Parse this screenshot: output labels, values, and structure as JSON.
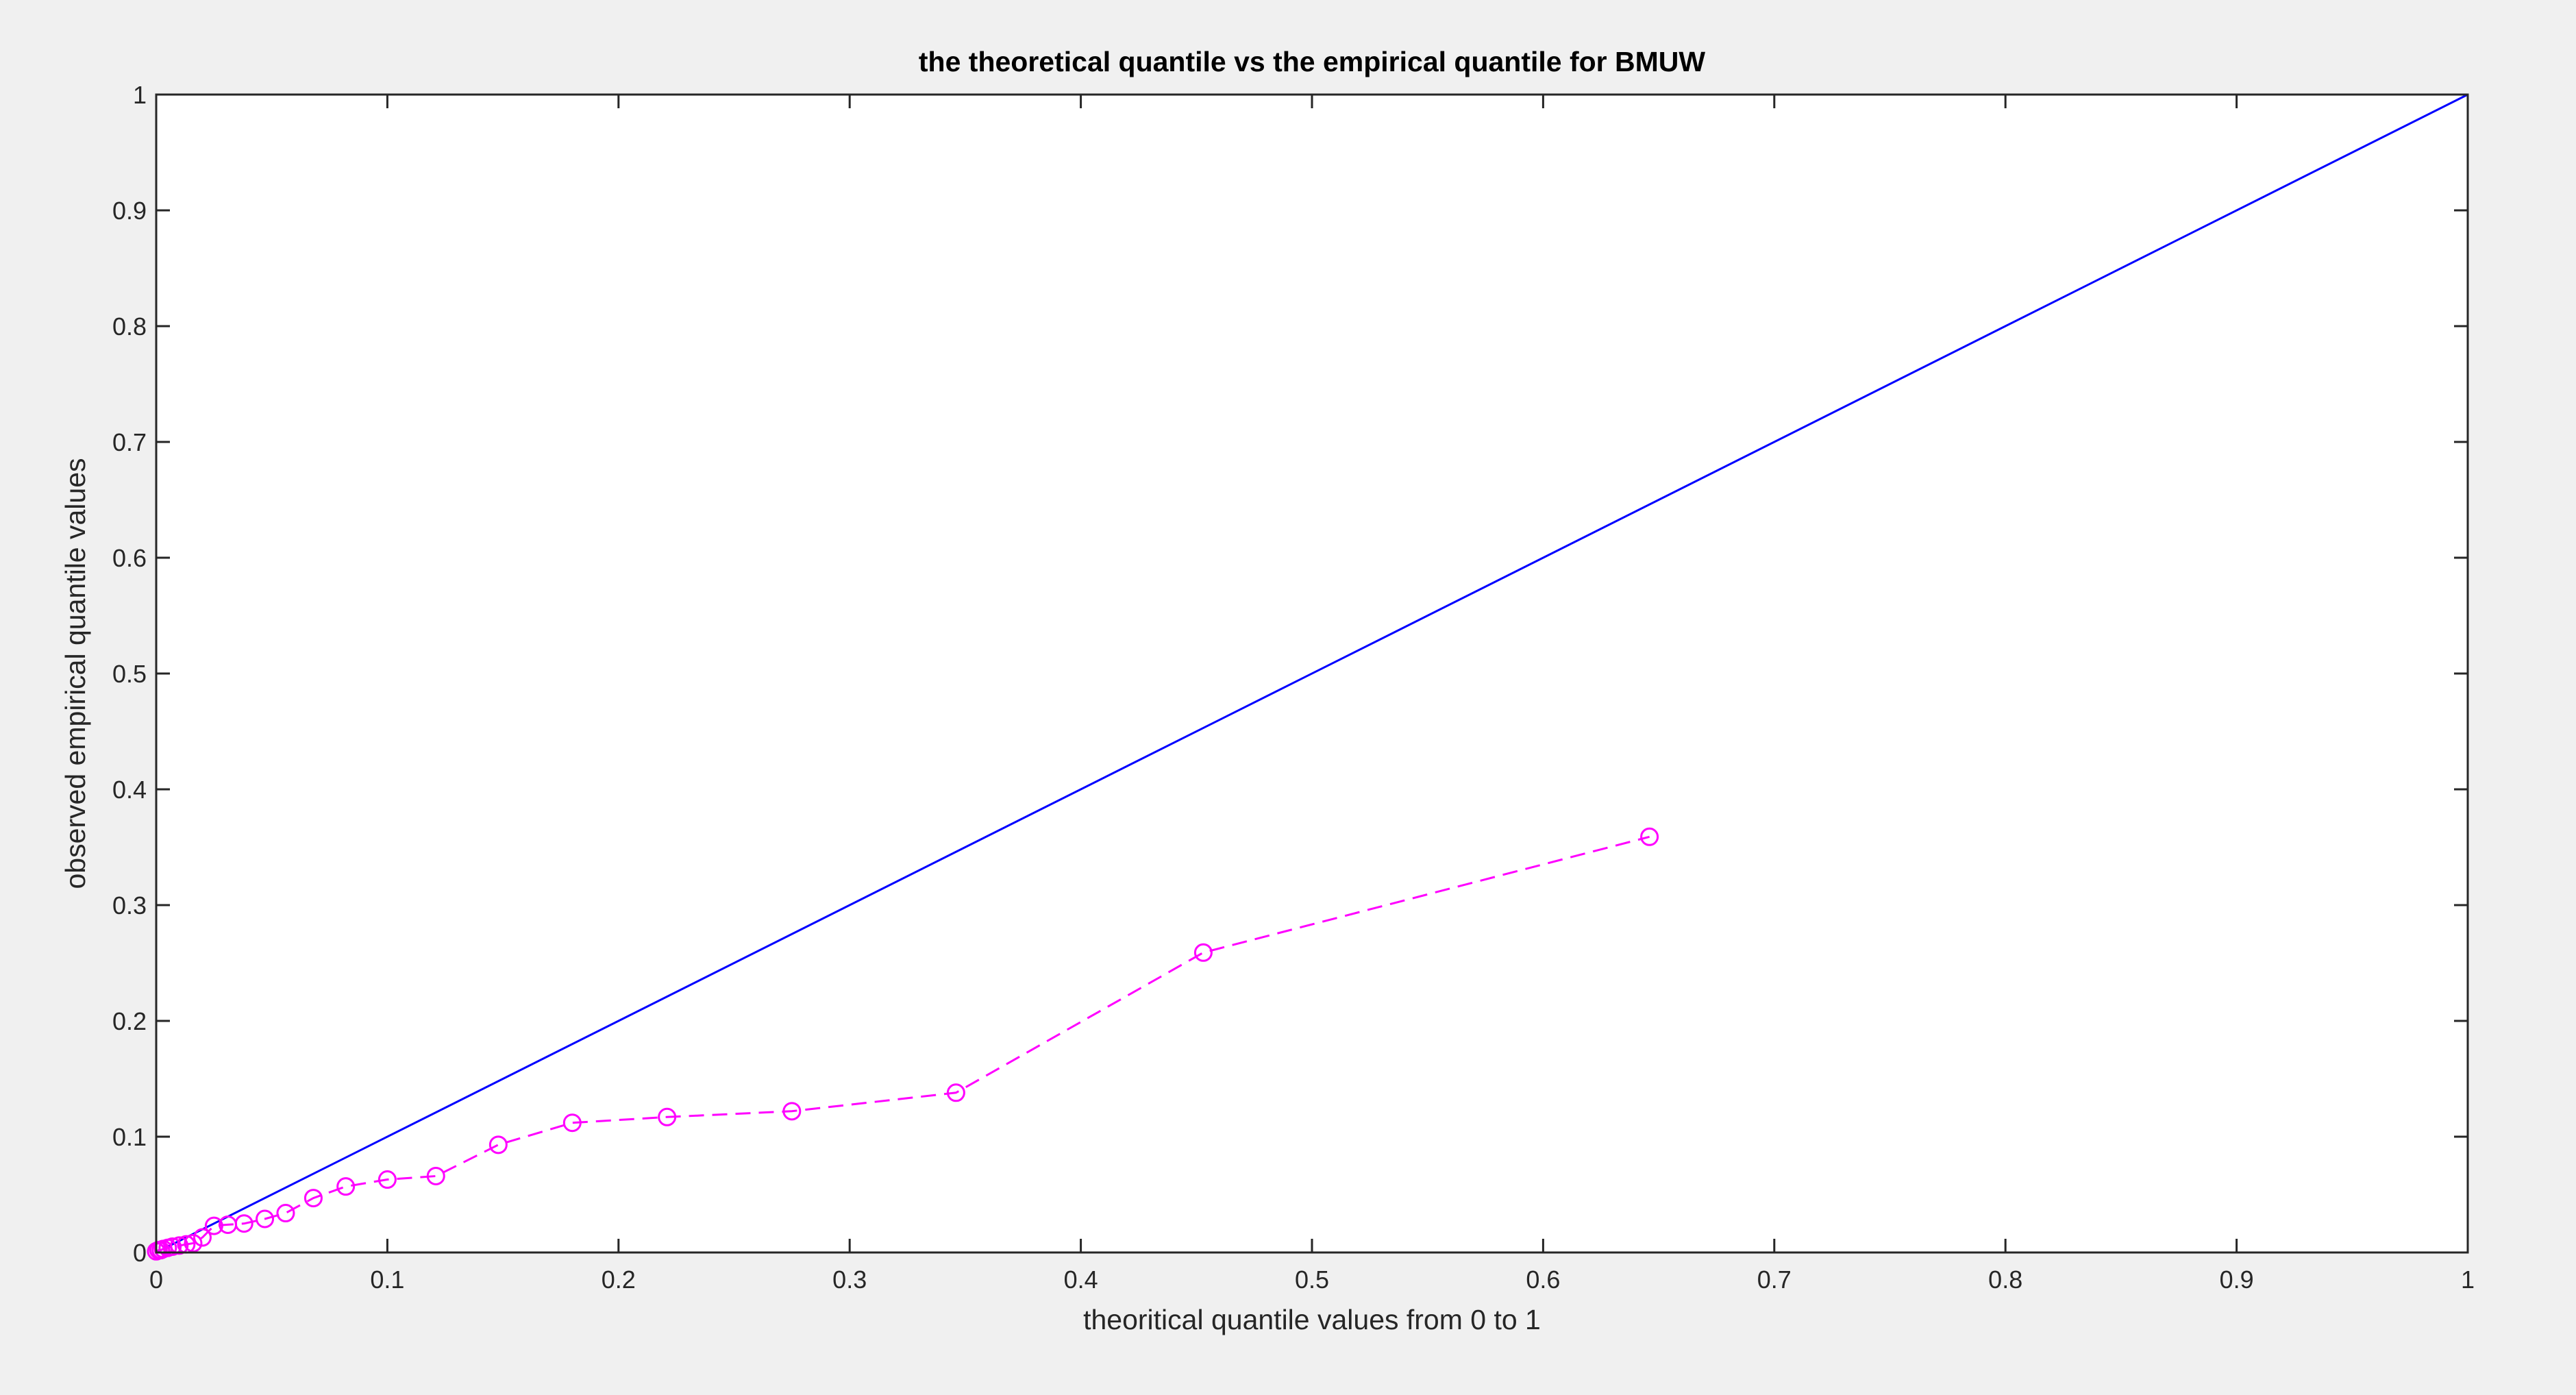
{
  "chart_data": {
    "type": "line",
    "title": "the theoretical quantile vs the empirical quantile for BMUW",
    "xlabel": "theoritical quantile values from 0 to 1",
    "ylabel": "observed empirical quantile  values",
    "xlim": [
      0,
      1
    ],
    "ylim": [
      0,
      1
    ],
    "x_ticks": [
      "0",
      "0.1",
      "0.2",
      "0.3",
      "0.4",
      "0.5",
      "0.6",
      "0.7",
      "0.8",
      "0.9",
      "1"
    ],
    "y_ticks": [
      "0",
      "0.1",
      "0.2",
      "0.3",
      "0.4",
      "0.5",
      "0.6",
      "0.7",
      "0.8",
      "0.9",
      "1"
    ],
    "grid": false,
    "legend": "none",
    "series": [
      {
        "style": "solid line",
        "color": "#0000ff",
        "x": [
          0,
          1
        ],
        "y": [
          0,
          1
        ]
      },
      {
        "style": "dashed line with circle markers",
        "color": "#ff00ff",
        "x": [
          0,
          0.001,
          0.002,
          0.003,
          0.005,
          0.007,
          0.01,
          0.013,
          0.016,
          0.02,
          0.025,
          0.031,
          0.038,
          0.047,
          0.056,
          0.068,
          0.082,
          0.1,
          0.121,
          0.148,
          0.18,
          0.221,
          0.275,
          0.346,
          0.453,
          0.646
        ],
        "y": [
          0.001,
          0.002,
          0.002,
          0.003,
          0.004,
          0.005,
          0.006,
          0.007,
          0.008,
          0.013,
          0.023,
          0.024,
          0.025,
          0.029,
          0.034,
          0.047,
          0.057,
          0.063,
          0.066,
          0.093,
          0.112,
          0.117,
          0.122,
          0.138,
          0.259,
          0.359
        ]
      }
    ]
  }
}
